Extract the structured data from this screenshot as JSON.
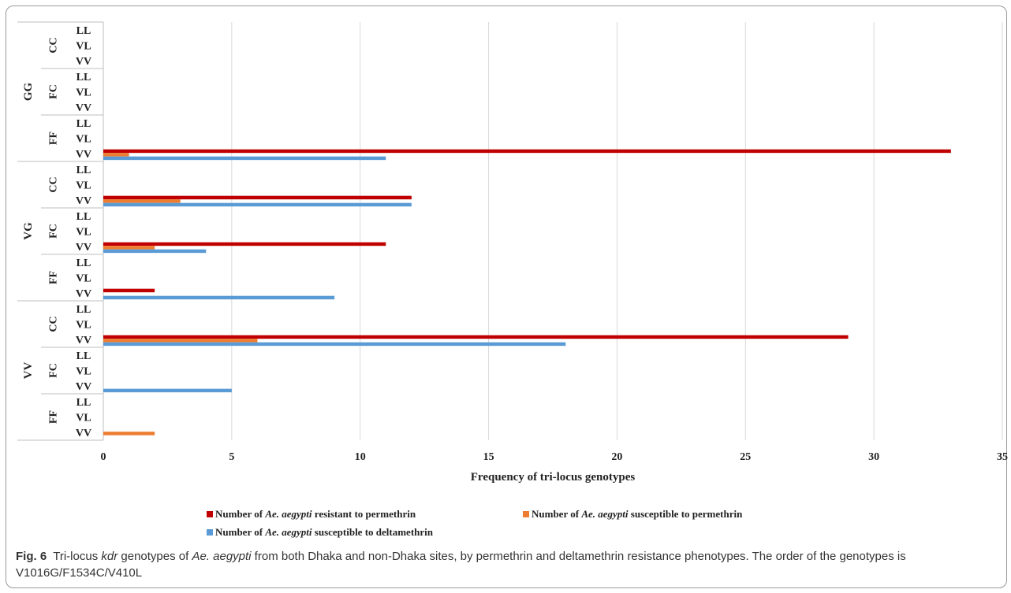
{
  "chart_data": {
    "type": "bar",
    "orientation": "horizontal",
    "xlabel": "Frequency of tri-locus genotypes",
    "xlim": [
      0,
      35
    ],
    "xticks": [
      0,
      5,
      10,
      15,
      20,
      25,
      30,
      35
    ],
    "grid": true,
    "legend_position": "bottom",
    "levels": {
      "outer": [
        "GG",
        "VG",
        "VV"
      ],
      "middle": [
        "CC",
        "FC",
        "FF"
      ],
      "inner": [
        "LL",
        "VL",
        "VV"
      ]
    },
    "genotype_order_note": "Outer = V1016G, middle = F1534C, inner = V410L",
    "series": [
      {
        "name_pre": "Number of ",
        "name_species": "Ae. aegypti",
        "name_post": " resistant to permethrin",
        "color": "#C00000",
        "data": [
          {
            "outer": "GG",
            "middle": "FF",
            "inner": "VV",
            "value": 33
          },
          {
            "outer": "VG",
            "middle": "CC",
            "inner": "VV",
            "value": 12
          },
          {
            "outer": "VG",
            "middle": "FC",
            "inner": "VV",
            "value": 11
          },
          {
            "outer": "VG",
            "middle": "FF",
            "inner": "VV",
            "value": 2
          },
          {
            "outer": "VV",
            "middle": "CC",
            "inner": "VV",
            "value": 29
          }
        ]
      },
      {
        "name_pre": "Number of ",
        "name_species": "Ae. aegypti",
        "name_post": " susceptible to permethrin",
        "color": "#ED7D31",
        "data": [
          {
            "outer": "GG",
            "middle": "FF",
            "inner": "VV",
            "value": 1
          },
          {
            "outer": "VG",
            "middle": "CC",
            "inner": "VV",
            "value": 3
          },
          {
            "outer": "VG",
            "middle": "FC",
            "inner": "VV",
            "value": 2
          },
          {
            "outer": "VV",
            "middle": "CC",
            "inner": "VV",
            "value": 6
          },
          {
            "outer": "VV",
            "middle": "FF",
            "inner": "VV",
            "value": 2
          }
        ]
      },
      {
        "name_pre": "Number of ",
        "name_species": "Ae. aegypti",
        "name_post": " susceptible to deltamethrin",
        "color": "#5B9BD5",
        "data": [
          {
            "outer": "GG",
            "middle": "FF",
            "inner": "VV",
            "value": 11
          },
          {
            "outer": "VG",
            "middle": "CC",
            "inner": "VV",
            "value": 12
          },
          {
            "outer": "VG",
            "middle": "FC",
            "inner": "VV",
            "value": 4
          },
          {
            "outer": "VG",
            "middle": "FF",
            "inner": "VV",
            "value": 9
          },
          {
            "outer": "VV",
            "middle": "CC",
            "inner": "VV",
            "value": 18
          },
          {
            "outer": "VV",
            "middle": "FC",
            "inner": "VV",
            "value": 5
          }
        ]
      }
    ]
  },
  "caption": {
    "fig_label": "Fig. 6",
    "t1": "Tri-locus ",
    "t_kdr": "kdr",
    "t2": " genotypes of ",
    "t_species": "Ae. aegypti",
    "t3": " from both Dhaka and non-Dhaka sites, by permethrin and deltamethrin resistance phenotypes. The order of the genotypes is V1016G/F1534C/V410L"
  }
}
